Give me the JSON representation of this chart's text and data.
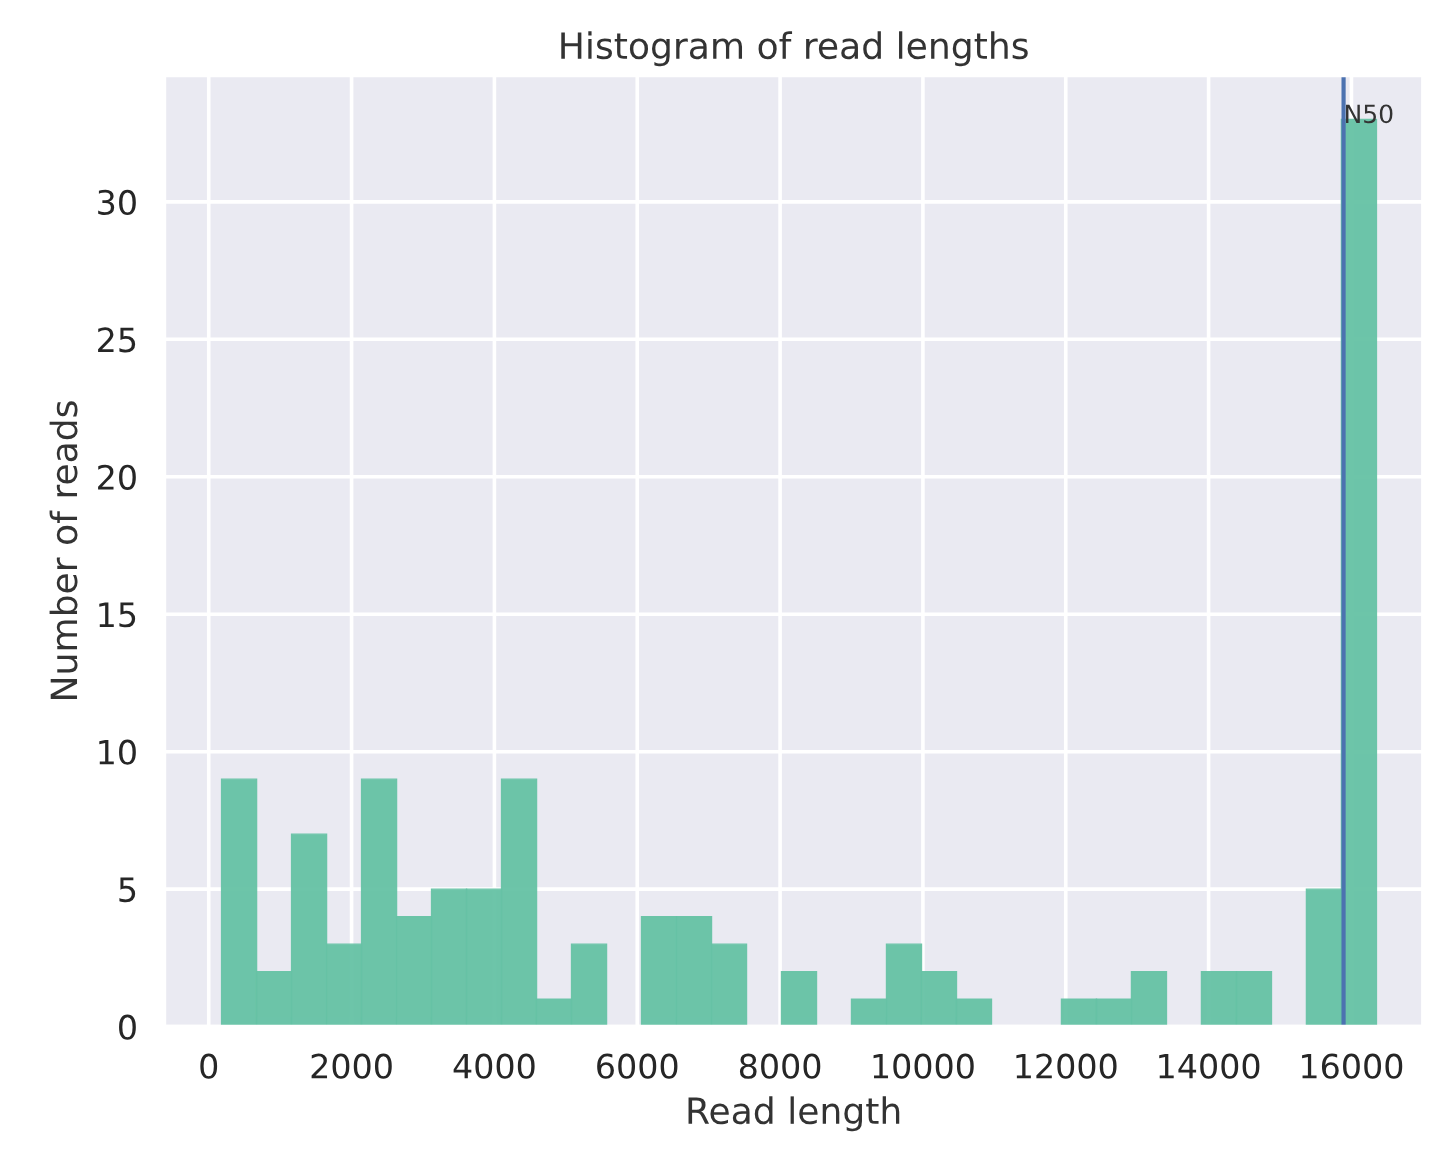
{
  "chart_data": {
    "type": "histogram",
    "title": "Histogram of read lengths",
    "xlabel": "Read length",
    "ylabel": "Number of reads",
    "bins": [
      180,
      670,
      1160,
      1650,
      2140,
      2630,
      3120,
      3610,
      4100,
      4590,
      5080,
      5570,
      6060,
      6550,
      7040,
      7530,
      8020,
      8510,
      9000,
      9490,
      9980,
      10470,
      10960,
      11450,
      11940,
      12430,
      12920,
      13410,
      13900,
      14390,
      14880,
      15370,
      15860,
      16350
    ],
    "values": [
      9,
      2,
      7,
      3,
      9,
      4,
      5,
      5,
      9,
      1,
      3,
      0,
      4,
      4,
      3,
      0,
      2,
      0,
      1,
      3,
      2,
      1,
      0,
      0,
      1,
      1,
      2,
      0,
      2,
      2,
      0,
      5,
      33
    ],
    "color": "#66c2a5",
    "xlim": [
      -620,
      17000
    ],
    "ylim": [
      0,
      34.6
    ],
    "xticks": [
      0,
      2000,
      4000,
      6000,
      8000,
      10000,
      12000,
      14000,
      16000
    ],
    "yticks": [
      0,
      5,
      10,
      15,
      20,
      25,
      30
    ],
    "ref_lines": [
      {
        "axis": "x",
        "value": 15890,
        "label": "N50",
        "color": "#4c72b0"
      }
    ],
    "grid": true,
    "legend": false
  }
}
